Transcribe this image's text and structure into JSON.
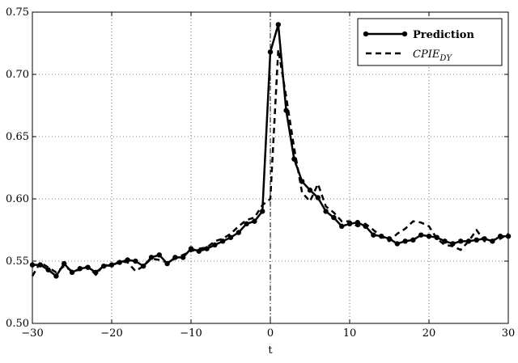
{
  "chart_data": {
    "type": "line",
    "xlabel": "t",
    "xlim": [
      -30,
      30
    ],
    "ylim": [
      0.5,
      0.75
    ],
    "xticks": [
      {
        "value": -30,
        "label": "−30"
      },
      {
        "value": -20,
        "label": "−20"
      },
      {
        "value": -10,
        "label": "−10"
      },
      0,
      10,
      20,
      30
    ],
    "yticks": [
      {
        "value": 0.5,
        "label": "0.50"
      },
      0.55,
      {
        "value": 0.6,
        "label": "0.60"
      },
      0.65,
      {
        "value": 0.7,
        "label": "0.70"
      },
      0.75
    ],
    "grid": true,
    "legend": "upper right",
    "vline_x": 0,
    "x": [
      -30,
      -29,
      -28,
      -27,
      -26,
      -25,
      -24,
      -23,
      -22,
      -21,
      -20,
      -19,
      -18,
      -17,
      -16,
      -15,
      -14,
      -13,
      -12,
      -11,
      -10,
      -9,
      -8,
      -7,
      -6,
      -5,
      -4,
      -3,
      -2,
      -1,
      0,
      1,
      2,
      3,
      4,
      5,
      6,
      7,
      8,
      9,
      10,
      11,
      12,
      13,
      14,
      15,
      16,
      17,
      18,
      19,
      20,
      21,
      22,
      23,
      24,
      25,
      26,
      27,
      28,
      29,
      30
    ],
    "series": [
      {
        "name": "Prediction",
        "color": "#000000",
        "markers": true,
        "dash": "solid",
        "values": [
          0.547,
          0.547,
          0.543,
          0.538,
          0.548,
          0.541,
          0.544,
          0.545,
          0.541,
          0.546,
          0.547,
          0.549,
          0.551,
          0.55,
          0.546,
          0.553,
          0.555,
          0.548,
          0.553,
          0.553,
          0.56,
          0.558,
          0.56,
          0.563,
          0.566,
          0.569,
          0.573,
          0.58,
          0.582,
          0.59,
          0.718,
          0.74,
          0.671,
          0.632,
          0.614,
          0.607,
          0.601,
          0.59,
          0.585,
          0.578,
          0.58,
          0.581,
          0.578,
          0.571,
          0.57,
          0.568,
          0.564,
          0.566,
          0.567,
          0.571,
          0.57,
          0.569,
          0.566,
          0.564,
          0.566,
          0.566,
          0.567,
          0.568,
          0.566,
          0.57,
          0.57
        ]
      },
      {
        "name": "CPIE",
        "name_sub": "DY",
        "color": "#000000",
        "markers": false,
        "dash": "dashed",
        "values": [
          0.538,
          0.549,
          0.545,
          0.541,
          0.546,
          0.542,
          0.543,
          0.546,
          0.539,
          0.547,
          0.546,
          0.55,
          0.549,
          0.542,
          0.546,
          0.552,
          0.551,
          0.549,
          0.552,
          0.555,
          0.558,
          0.56,
          0.561,
          0.566,
          0.568,
          0.572,
          0.578,
          0.583,
          0.585,
          0.595,
          0.6,
          0.72,
          0.682,
          0.641,
          0.605,
          0.598,
          0.612,
          0.594,
          0.589,
          0.582,
          0.582,
          0.578,
          0.58,
          0.575,
          0.57,
          0.566,
          0.572,
          0.576,
          0.582,
          0.581,
          0.578,
          0.568,
          0.563,
          0.562,
          0.559,
          0.566,
          0.575,
          0.566,
          0.567,
          0.568,
          0.572
        ]
      }
    ]
  }
}
